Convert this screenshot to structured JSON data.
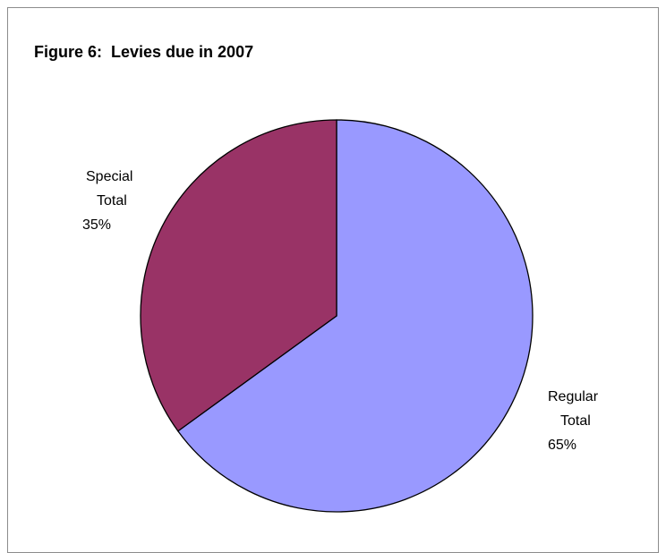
{
  "chart_data": {
    "type": "pie",
    "title": "Figure 6:  Levies due in 2007",
    "slices": [
      {
        "label_line1": "Special",
        "label_line2": "Total",
        "percent_label": "35%",
        "value": 35,
        "color": "#993366"
      },
      {
        "label_line1": "Regular",
        "label_line2": "Total",
        "percent_label": "65%",
        "value": 65,
        "color": "#9999ff"
      }
    ],
    "legend": "none"
  }
}
